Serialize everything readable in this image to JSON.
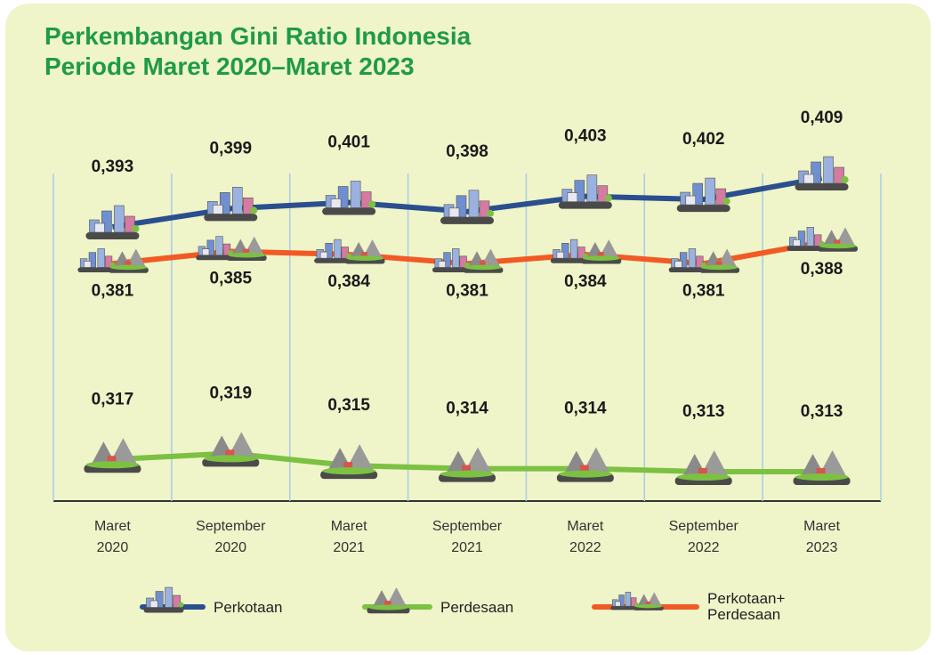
{
  "chart_data": {
    "type": "line",
    "title": "Perkembangan Gini Ratio Indonesia",
    "subtitle": "Periode Maret 2020–Maret 2023",
    "categories": [
      "Maret 2020",
      "September 2020",
      "Maret 2021",
      "September 2021",
      "Maret 2022",
      "September 2022",
      "Maret 2023"
    ],
    "series": [
      {
        "name": "Perkotaan",
        "color": "#2b4f8e",
        "values": [
          0.393,
          0.399,
          0.401,
          0.398,
          0.403,
          0.402,
          0.409
        ],
        "value_labels": [
          "0,393",
          "0,399",
          "0,401",
          "0,398",
          "0,403",
          "0,402",
          "0,409"
        ]
      },
      {
        "name": "Perdesaan",
        "color": "#7cc142",
        "values": [
          0.317,
          0.319,
          0.315,
          0.314,
          0.314,
          0.313,
          0.313
        ],
        "value_labels": [
          "0,317",
          "0,319",
          "0,315",
          "0,314",
          "0,314",
          "0,313",
          "0,313"
        ]
      },
      {
        "name": "Perkotaan+ Perdesaan",
        "color": "#f15a24",
        "values": [
          0.381,
          0.385,
          0.384,
          0.381,
          0.384,
          0.381,
          0.388
        ],
        "value_labels": [
          "0,381",
          "0,385",
          "0,384",
          "0,381",
          "0,384",
          "0,381",
          "0,388"
        ]
      }
    ]
  }
}
